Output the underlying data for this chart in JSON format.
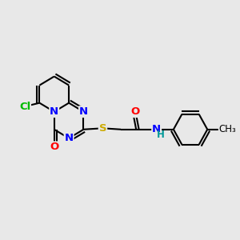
{
  "background_color": "#e8e8e8",
  "atom_colors": {
    "N": "#0000ff",
    "O": "#ff0000",
    "S": "#ccaa00",
    "Cl": "#00bb00",
    "NH": "#009999",
    "C": "#000000"
  },
  "bond_color": "#000000",
  "bond_width": 1.5,
  "font_size": 9.5,
  "figsize": [
    3.0,
    3.0
  ],
  "dpi": 100
}
